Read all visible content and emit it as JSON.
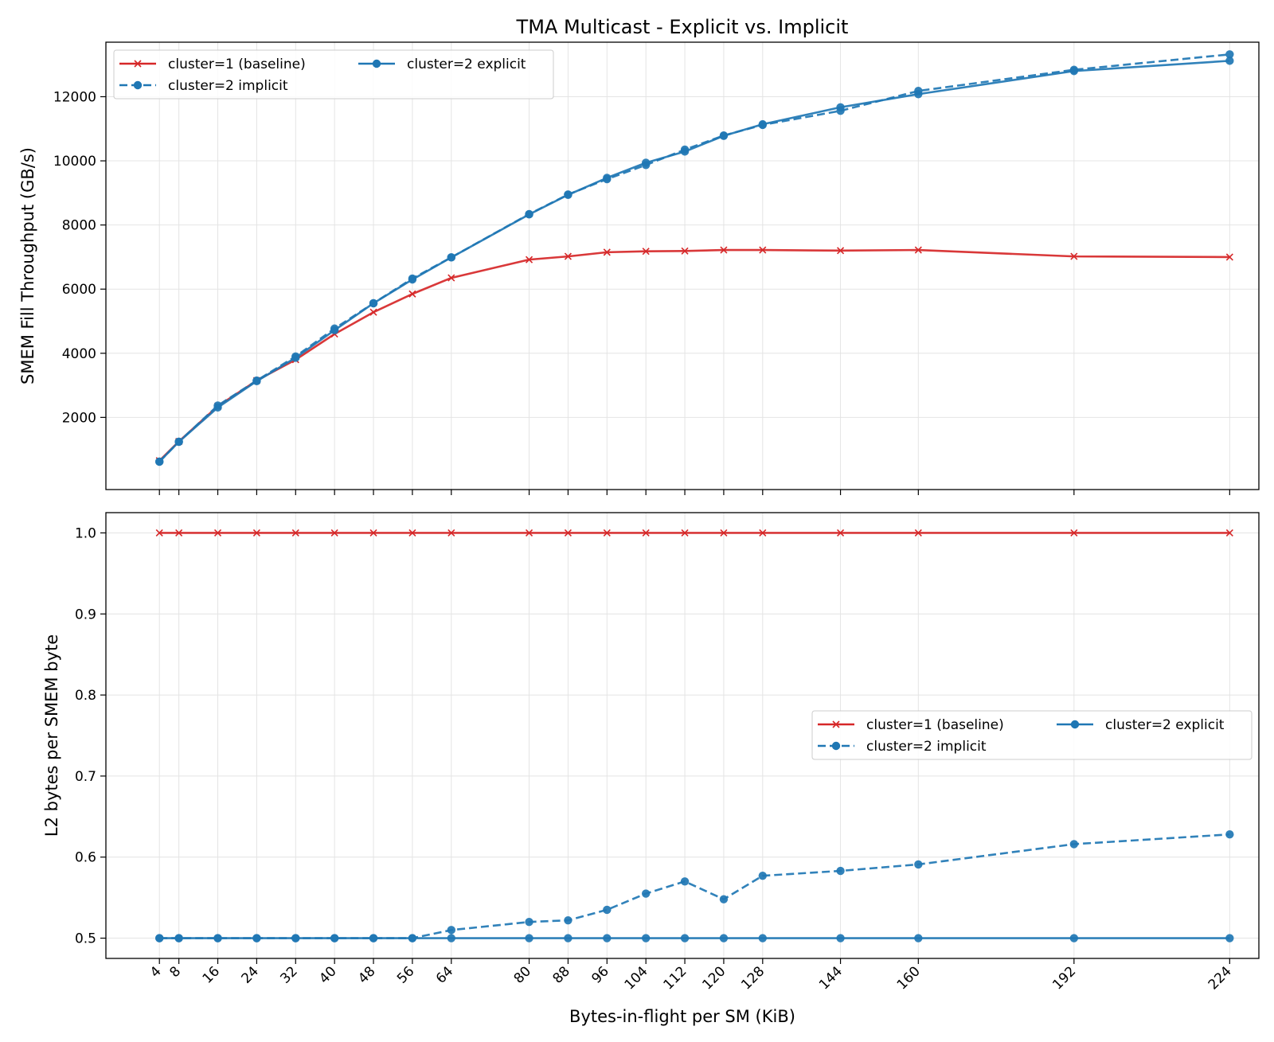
{
  "chart_data": {
    "type": "line",
    "title": "TMA Multicast - Explicit vs. Implicit",
    "xlabel": "Bytes-in-flight per SM (KiB)",
    "x": [
      4,
      8,
      16,
      24,
      32,
      40,
      48,
      56,
      64,
      80,
      88,
      96,
      104,
      112,
      120,
      128,
      144,
      160,
      192,
      224
    ],
    "xticks": [
      "4",
      "8",
      "16",
      "24",
      "32",
      "40",
      "48",
      "56",
      "64",
      "80",
      "88",
      "96",
      "104",
      "112",
      "120",
      "128",
      "144",
      "160",
      "192",
      "224"
    ],
    "xlim": [
      -7,
      230
    ],
    "colors": {
      "baseline": "#d62728",
      "cluster2": "#1f77b4"
    },
    "panels": [
      {
        "ylabel": "SMEM Fill Throughput (GB/s)",
        "ylim": [
          -250,
          13700
        ],
        "yticks": [
          "2000",
          "4000",
          "6000",
          "8000",
          "10000",
          "12000"
        ],
        "ytick_values": [
          2000,
          4000,
          6000,
          8000,
          10000,
          12000
        ],
        "legend_position": "top-left",
        "legend": [
          "cluster=1 (baseline)",
          "cluster=2 implicit",
          "cluster=2 explicit"
        ],
        "series": [
          {
            "name": "cluster=1 (baseline)",
            "style": "solid",
            "marker": "x",
            "color": "#d62728",
            "values": [
              650,
              1250,
              2350,
              3150,
              3800,
              4600,
              5280,
              5850,
              6350,
              6920,
              7020,
              7150,
              7180,
              7190,
              7220,
              7220,
              7200,
              7220,
              7020,
              7000
            ]
          },
          {
            "name": "cluster=2 implicit",
            "style": "dashed",
            "marker": "o",
            "color": "#1f77b4",
            "values": [
              620,
              1240,
              2370,
              3150,
              3900,
              4770,
              5560,
              6330,
              6990,
              8340,
              8950,
              9430,
              9870,
              10350,
              10790,
              11120,
              11560,
              12180,
              12840,
              13320
            ]
          },
          {
            "name": "cluster=2 explicit",
            "style": "solid",
            "marker": "o",
            "color": "#1f77b4",
            "values": [
              620,
              1240,
              2310,
              3130,
              3860,
              4720,
              5560,
              6300,
              6990,
              8330,
              8940,
              9470,
              9940,
              10290,
              10780,
              11140,
              11670,
              12080,
              12800,
              13120
            ]
          }
        ]
      },
      {
        "ylabel": "L2 bytes per SMEM byte",
        "ylim": [
          0.475,
          1.025
        ],
        "yticks": [
          "0.5",
          "0.6",
          "0.7",
          "0.8",
          "0.9",
          "1.0"
        ],
        "ytick_values": [
          0.5,
          0.6,
          0.7,
          0.8,
          0.9,
          1.0
        ],
        "legend_position": "center-right",
        "legend": [
          "cluster=1 (baseline)",
          "cluster=2 implicit",
          "cluster=2 explicit"
        ],
        "series": [
          {
            "name": "cluster=1 (baseline)",
            "style": "solid",
            "marker": "x",
            "color": "#d62728",
            "values": [
              1,
              1,
              1,
              1,
              1,
              1,
              1,
              1,
              1,
              1,
              1,
              1,
              1,
              1,
              1,
              1,
              1,
              1,
              1,
              1
            ]
          },
          {
            "name": "cluster=2 implicit",
            "style": "dashed",
            "marker": "o",
            "color": "#1f77b4",
            "values": [
              0.5,
              0.5,
              0.5,
              0.5,
              0.5,
              0.5,
              0.5,
              0.5,
              0.51,
              0.52,
              0.522,
              0.535,
              0.555,
              0.57,
              0.548,
              0.577,
              0.583,
              0.591,
              0.616,
              0.628
            ]
          },
          {
            "name": "cluster=2 explicit",
            "style": "solid",
            "marker": "o",
            "color": "#1f77b4",
            "values": [
              0.5,
              0.5,
              0.5,
              0.5,
              0.5,
              0.5,
              0.5,
              0.5,
              0.5,
              0.5,
              0.5,
              0.5,
              0.5,
              0.5,
              0.5,
              0.5,
              0.5,
              0.5,
              0.5,
              0.5
            ]
          }
        ]
      }
    ]
  }
}
